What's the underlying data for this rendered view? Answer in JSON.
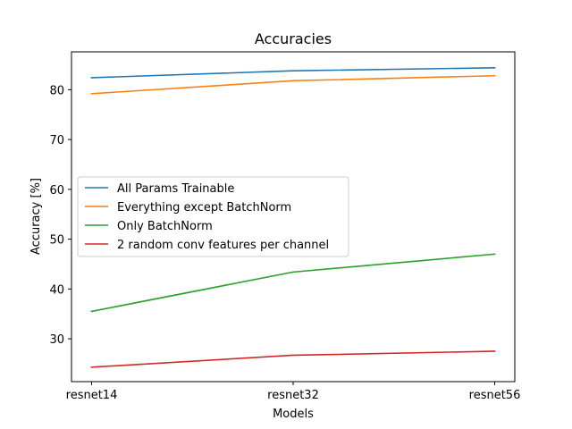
{
  "chart_data": {
    "type": "line",
    "title": "Accuracies",
    "xlabel": "Models",
    "ylabel": "Accuracy [%]",
    "categories": [
      "resnet14",
      "resnet32",
      "resnet56"
    ],
    "ylim": [
      21.4,
      87.6
    ],
    "yticks": [
      30,
      40,
      50,
      60,
      70,
      80
    ],
    "grid": false,
    "legend_position": "center-left",
    "series": [
      {
        "name": "All Params Trainable",
        "color": "#1f77b4",
        "values": [
          82.4,
          83.8,
          84.4
        ]
      },
      {
        "name": "Everything except BatchNorm",
        "color": "#ff7f0e",
        "values": [
          79.2,
          81.8,
          82.8
        ]
      },
      {
        "name": "Only BatchNorm",
        "color": "#2ca02c",
        "values": [
          35.5,
          43.4,
          47.0
        ]
      },
      {
        "name": "2 random conv features per channel",
        "color": "#d62728",
        "values": [
          24.3,
          26.7,
          27.5
        ]
      }
    ]
  }
}
